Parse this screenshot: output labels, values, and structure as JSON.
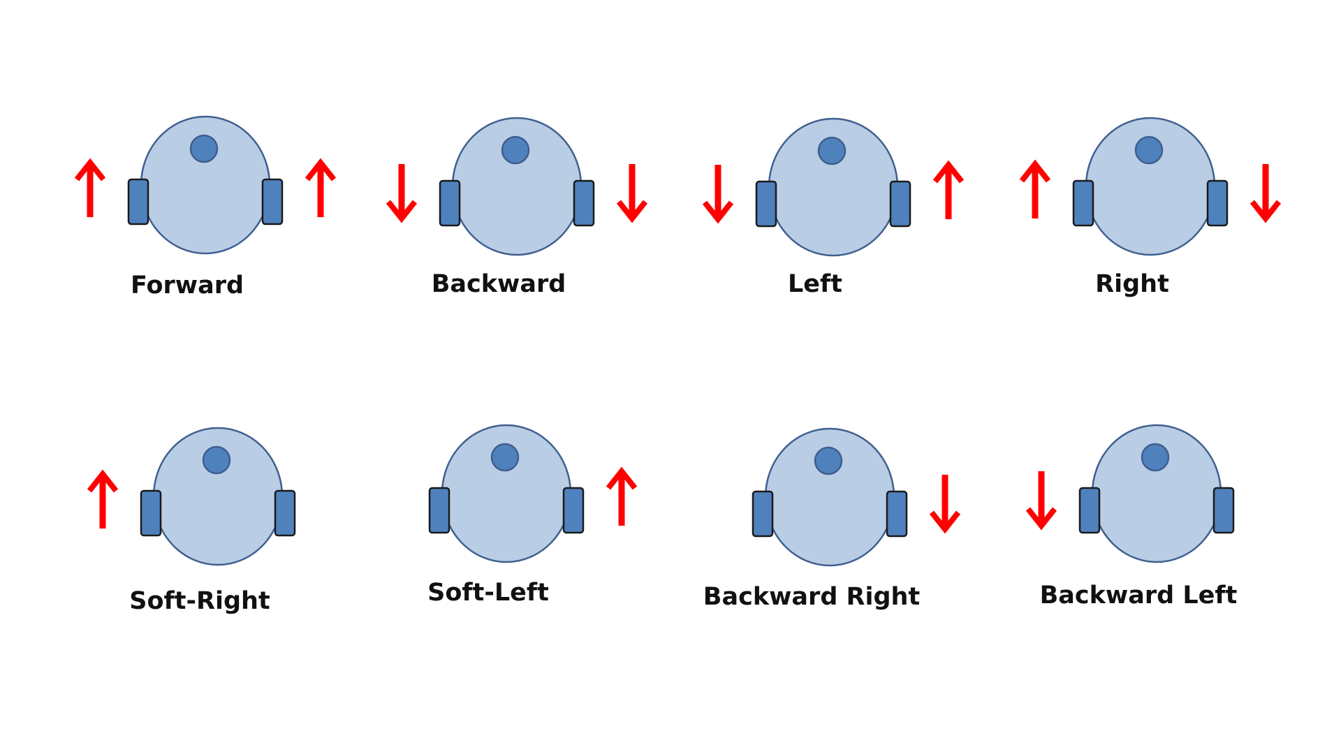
{
  "colors": {
    "body_fill": "#b9cde5",
    "body_stroke": "#3f5f8f",
    "sensor_fill": "#4f81bd",
    "wheel_fill": "#4f81bd",
    "wheel_stroke": "#1a1a1a",
    "arrow": "#ff0000"
  },
  "robots": [
    {
      "label": "Forward",
      "left_wheel": "up",
      "right_wheel": "up"
    },
    {
      "label": "Backward",
      "left_wheel": "down",
      "right_wheel": "down"
    },
    {
      "label": "Left",
      "left_wheel": "down",
      "right_wheel": "up"
    },
    {
      "label": "Right",
      "left_wheel": "up",
      "right_wheel": "down"
    },
    {
      "label": "Soft-Right",
      "left_wheel": "up",
      "right_wheel": "none"
    },
    {
      "label": "Soft-Left",
      "left_wheel": "none",
      "right_wheel": "up"
    },
    {
      "label": "Backward Right",
      "left_wheel": "none",
      "right_wheel": "down"
    },
    {
      "label": "Backward Left",
      "left_wheel": "down",
      "right_wheel": "none"
    }
  ]
}
